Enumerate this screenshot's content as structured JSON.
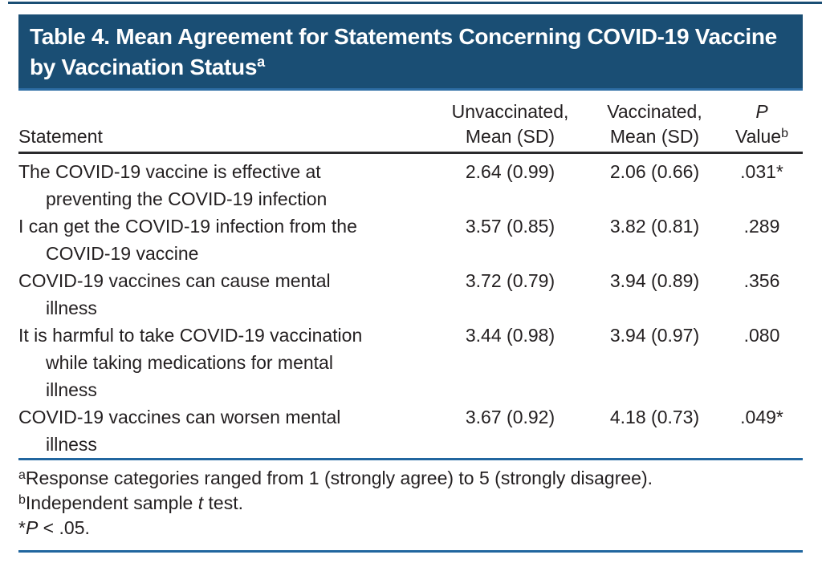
{
  "colors": {
    "banner_background": "#1a4e74",
    "banner_text": "#ffffff",
    "rule_blue": "#21669f",
    "rule_dark": "#2a2a2c",
    "body_text": "#231f20"
  },
  "table": {
    "title": "Table 4. Mean Agreement for Statements Concerning COVID-19 Vaccine by Vaccination Status",
    "title_superscript": "a",
    "header": {
      "statement": "Statement",
      "unvaccinated": [
        "Unvaccinated,",
        "Mean (SD)"
      ],
      "vaccinated": [
        "Vaccinated,",
        "Mean (SD)"
      ],
      "p": {
        "line1_italic": "P",
        "line2": "Value",
        "superscript": "b"
      }
    },
    "rows": [
      {
        "statement": "The COVID-19 vaccine is effective at preventing the COVID-19 infection",
        "unvaccinated": "2.64 (0.99)",
        "vaccinated": "2.06 (0.66)",
        "p_value": ".031*"
      },
      {
        "statement": "I can get the COVID-19 infection from the COVID-19 vaccine",
        "unvaccinated": "3.57 (0.85)",
        "vaccinated": "3.82 (0.81)",
        "p_value": ".289"
      },
      {
        "statement": "COVID-19 vaccines can cause mental illness",
        "unvaccinated": "3.72 (0.79)",
        "vaccinated": "3.94 (0.89)",
        "p_value": ".356"
      },
      {
        "statement": "It is harmful to take COVID-19 vaccination while taking medications for mental illness",
        "unvaccinated": "3.44 (0.98)",
        "vaccinated": "3.94 (0.97)",
        "p_value": ".080"
      },
      {
        "statement": "COVID-19 vaccines can worsen mental illness",
        "unvaccinated": "3.67 (0.92)",
        "vaccinated": "4.18 (0.73)",
        "p_value": ".049*"
      }
    ],
    "footnotes": [
      {
        "marker": "a",
        "pre": "Response categories ranged from 1 (strongly agree) to 5 (strongly disagree).",
        "italic": "",
        "post": ""
      },
      {
        "marker": "b",
        "pre": "Independent sample ",
        "italic": "t",
        "post": " test."
      },
      {
        "marker": "*",
        "pre": "",
        "italic": "P",
        "post": " < .05."
      }
    ]
  }
}
